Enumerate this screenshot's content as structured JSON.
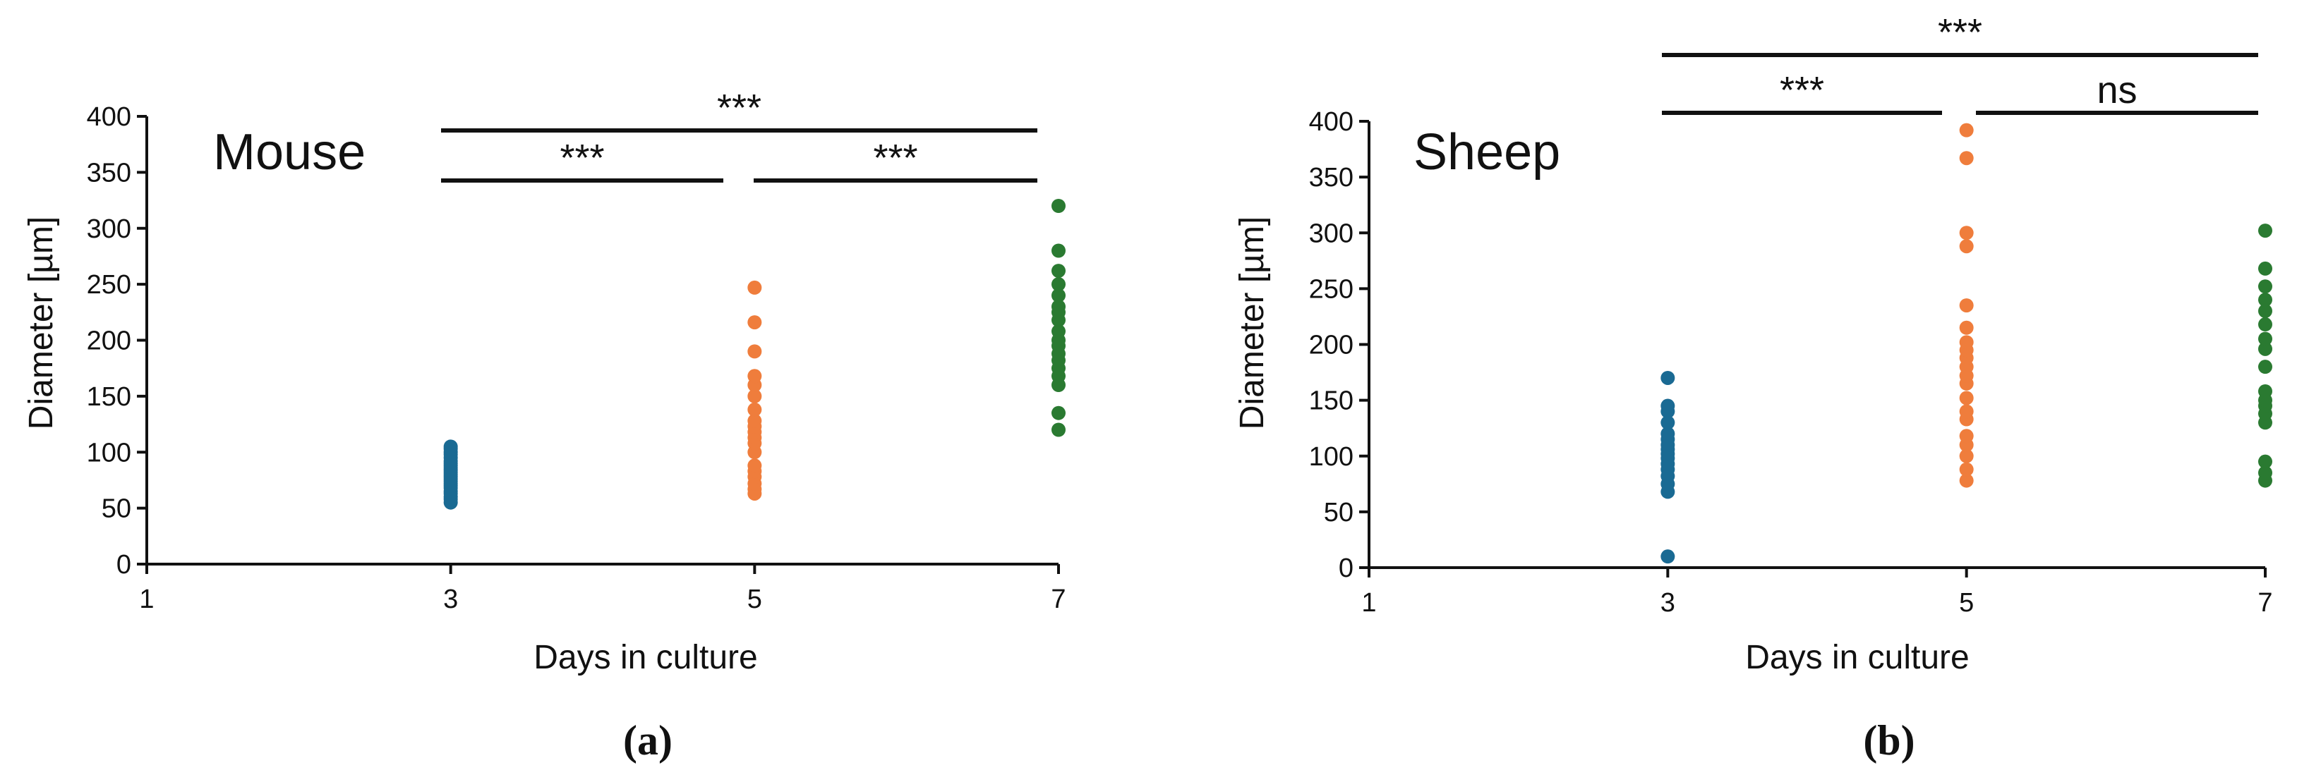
{
  "colors": {
    "day3": "#1a6a93",
    "day5": "#ef7d3c",
    "day7": "#2a7a31"
  },
  "chart_data": [
    {
      "type": "scatter",
      "panel": "a",
      "title": "Mouse",
      "caption": "(a)",
      "xlabel": "Days in culture",
      "ylabel": "Diameter [µm]",
      "xlim": [
        1,
        7
      ],
      "ylim": [
        0,
        400
      ],
      "xticks": [
        1,
        3,
        5,
        7
      ],
      "yticks": [
        0,
        50,
        100,
        150,
        200,
        250,
        300,
        350,
        400
      ],
      "series": [
        {
          "x": 3,
          "color_key": "day3",
          "values": [
            55,
            58,
            60,
            63,
            65,
            68,
            70,
            72,
            74,
            76,
            78,
            80,
            82,
            84,
            86,
            88,
            90,
            92,
            95,
            98,
            100,
            103,
            105
          ]
        },
        {
          "x": 5,
          "color_key": "day5",
          "values": [
            63,
            67,
            72,
            78,
            83,
            88,
            100,
            108,
            113,
            118,
            123,
            128,
            138,
            150,
            160,
            168,
            190,
            216,
            247
          ]
        },
        {
          "x": 7,
          "color_key": "day7",
          "values": [
            120,
            135,
            160,
            168,
            175,
            182,
            188,
            195,
            200,
            208,
            218,
            225,
            230,
            240,
            250,
            262,
            280,
            320
          ]
        }
      ],
      "significance": [
        {
          "from": 3,
          "to": 7,
          "label": "***"
        },
        {
          "from": 3,
          "to": 5,
          "label": "***"
        },
        {
          "from": 5,
          "to": 7,
          "label": "***"
        }
      ]
    },
    {
      "type": "scatter",
      "panel": "b",
      "title": "Sheep",
      "caption": "(b)",
      "xlabel": "Days in culture",
      "ylabel": "Diameter [µm]",
      "xlim": [
        1,
        7
      ],
      "ylim": [
        0,
        400
      ],
      "xticks": [
        1,
        3,
        5,
        7
      ],
      "yticks": [
        0,
        50,
        100,
        150,
        200,
        250,
        300,
        350,
        400
      ],
      "series": [
        {
          "x": 3,
          "color_key": "day3",
          "values": [
            10,
            68,
            75,
            82,
            88,
            93,
            98,
            102,
            106,
            110,
            115,
            120,
            130,
            140,
            145,
            170
          ]
        },
        {
          "x": 5,
          "color_key": "day5",
          "values": [
            78,
            88,
            100,
            110,
            118,
            133,
            140,
            152,
            165,
            172,
            180,
            188,
            195,
            202,
            215,
            235,
            288,
            300,
            367,
            392
          ]
        },
        {
          "x": 7,
          "color_key": "day7",
          "values": [
            78,
            85,
            95,
            130,
            138,
            145,
            150,
            158,
            180,
            196,
            205,
            218,
            230,
            240,
            252,
            268,
            302
          ]
        }
      ],
      "significance": [
        {
          "from": 3,
          "to": 7,
          "label": "***"
        },
        {
          "from": 3,
          "to": 5,
          "label": "***"
        },
        {
          "from": 5,
          "to": 7,
          "label": "ns"
        }
      ]
    }
  ]
}
